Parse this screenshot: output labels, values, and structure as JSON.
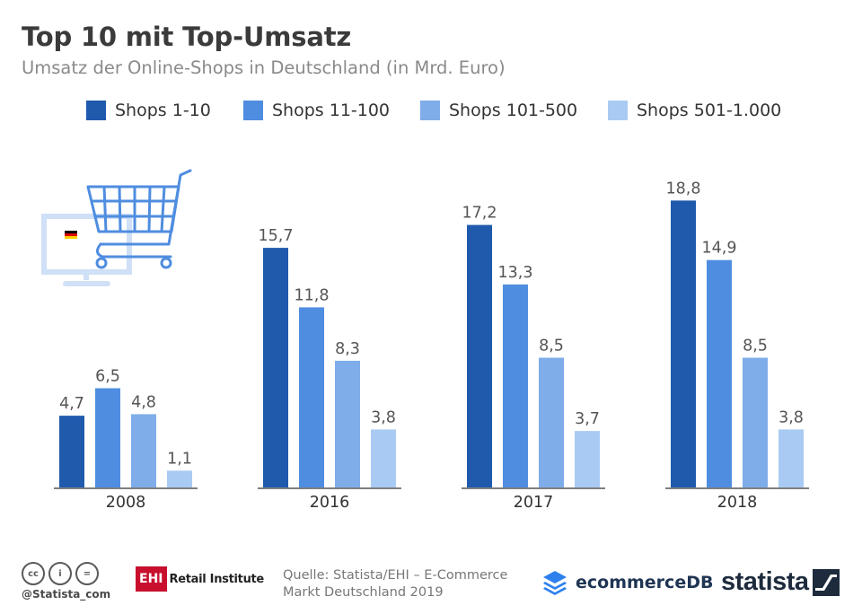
{
  "header": {
    "title": "Top 10 mit Top-Umsatz",
    "subtitle": "Umsatz der Online-Shops in Deutschland (in Mrd. Euro)"
  },
  "legend": [
    {
      "label": "Shops 1-10",
      "color": "#1f5aad"
    },
    {
      "label": "Shops 11-100",
      "color": "#4f8de0"
    },
    {
      "label": "Shops 101-500",
      "color": "#7eadea"
    },
    {
      "label": "Shops 501-1.000",
      "color": "#a9cbf3"
    }
  ],
  "chart_data": {
    "type": "bar",
    "title": "Top 10 mit Top-Umsatz",
    "subtitle": "Umsatz der Online-Shops in Deutschland (in Mrd. Euro)",
    "categories": [
      "2008",
      "2016",
      "2017",
      "2018"
    ],
    "series": [
      {
        "name": "Shops 1-10",
        "values": [
          4.7,
          15.7,
          17.2,
          18.8
        ],
        "labels": [
          "4,7",
          "15,7",
          "17,2",
          "18,8"
        ],
        "color": "#1f5aad"
      },
      {
        "name": "Shops 11-100",
        "values": [
          6.5,
          11.8,
          13.3,
          14.9
        ],
        "labels": [
          "6,5",
          "11,8",
          "13,3",
          "14,9"
        ],
        "color": "#4f8de0"
      },
      {
        "name": "Shops 101-500",
        "values": [
          4.8,
          8.3,
          8.5,
          8.5
        ],
        "labels": [
          "4,8",
          "8,3",
          "8,5",
          "8,5"
        ],
        "color": "#7eadea"
      },
      {
        "name": "Shops 501-1.000",
        "values": [
          1.1,
          3.8,
          3.7,
          3.8
        ],
        "labels": [
          "1,1",
          "3,8",
          "3,7",
          "3,8"
        ],
        "color": "#a9cbf3"
      }
    ],
    "ylim": [
      0,
      20
    ],
    "grid": false,
    "legend_position": "top"
  },
  "illustration": {
    "icons": [
      "shopping-cart-icon",
      "monitor-icon",
      "german-flag-icon"
    ]
  },
  "footer": {
    "handle": "@Statista_com",
    "license_icons": [
      "cc-icon",
      "by-icon",
      "nd-icon"
    ],
    "cc_icon_glyphs": [
      "cc",
      "i",
      "="
    ],
    "ehi_mark": "EHI",
    "ehi_text": "Retail Institute",
    "source_line1": "Quelle: Statista/EHI – E-Commerce",
    "source_line2": "Markt Deutschland 2019",
    "ecommercedb_text": "ecommerceDB",
    "statista_text": "statista"
  }
}
